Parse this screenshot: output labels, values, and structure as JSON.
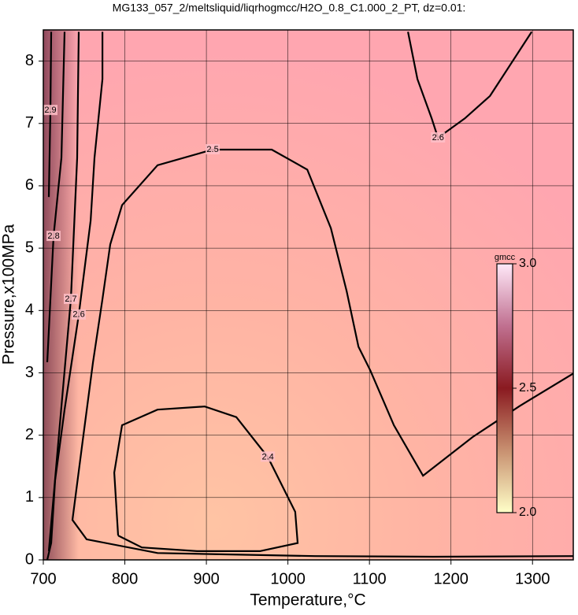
{
  "chart_data": {
    "type": "contour",
    "title": "MG133_057_2/meltsliquid/liqrhogmcc/H2O_0.8_C1.000_2_PT, dz=0.01:",
    "x_label": "Temperature,°C",
    "y_label": "Pressure,x100MPa",
    "xlim": [
      700,
      1350
    ],
    "ylim": [
      0,
      8.5
    ],
    "xticks": [
      700,
      800,
      900,
      1000,
      1100,
      1200,
      1300
    ],
    "yticks": [
      0,
      1,
      2,
      3,
      4,
      5,
      6,
      7,
      8
    ],
    "grid": true,
    "line_color": "#000000",
    "contours": [
      {
        "level": 2.4,
        "x": [
          791.8,
          787,
          796.6,
          840,
          898,
          936.7,
          975.4,
          1009,
          1012,
          965.7,
          888.4,
          820.8,
          791.8
        ],
        "y": [
          0.39,
          1.4,
          2.16,
          2.41,
          2.46,
          2.29,
          1.65,
          0.77,
          0.27,
          0.14,
          0.14,
          0.2,
          0.39
        ]
      },
      {
        "level": 2.5,
        "x": [
          1350,
          1178.3,
          1033.3,
          840.1,
          753.1,
          735.7,
          748.3,
          760.9,
          772.5,
          782.1,
          796.6,
          840.1,
          907.7,
          980.2,
          1023.7,
          1052.7,
          1072,
          1086.5,
          1101,
          1130,
          1165.7,
          1226.6,
          1284.5,
          1350
        ],
        "y": [
          0.06,
          0.05,
          0.06,
          0.11,
          0.33,
          0.64,
          1.91,
          3.17,
          4.18,
          5.06,
          5.69,
          6.33,
          6.58,
          6.58,
          6.26,
          5.32,
          4.31,
          3.42,
          3.04,
          2.16,
          1.35,
          1.97,
          2.47,
          2.99
        ]
      },
      {
        "level": 2.6,
        "x": [
          772.5,
          772.5,
          762.8,
          758,
          743.5,
          726.1,
          714.5,
          709.7,
          704.8
        ],
        "y": [
          8.47,
          7.71,
          6.45,
          5.44,
          3.93,
          2.41,
          1.28,
          0.27,
          0
        ]
      },
      {
        "level": 2.6,
        "x": [
          1147.3,
          1158.9,
          1176.3,
          1184.1,
          1216.9,
          1247.8,
          1299
        ],
        "y": [
          8.47,
          7.71,
          7.08,
          6.77,
          7.08,
          7.44,
          8.47
        ]
      },
      {
        "level": 2.7,
        "x": [
          743.5,
          741.5,
          733.8,
          719.3,
          706.8
        ],
        "y": [
          8.47,
          6.45,
          4.18,
          2.03,
          0.14
        ]
      },
      {
        "level": 2.8,
        "x": [
          726.1,
          722.2,
          712.6,
          704.8
        ],
        "y": [
          8.47,
          6.45,
          5.19,
          3.17
        ]
      },
      {
        "level": 2.9,
        "x": [
          709.7,
          708.7,
          706.8
        ],
        "y": [
          8.47,
          7.21,
          5.82
        ]
      }
    ],
    "colorbar": {
      "label": "gmcc",
      "lim": [
        2.0,
        3.0
      ],
      "ticks": [
        {
          "value": 2.0,
          "label": "2.0"
        },
        2.5,
        {
          "value": 3.0,
          "label": "3.0"
        }
      ],
      "colors": [
        "#ffffc8",
        "#c89070",
        "#8a1a20",
        "#c07090",
        "#ffe8f8"
      ]
    }
  }
}
